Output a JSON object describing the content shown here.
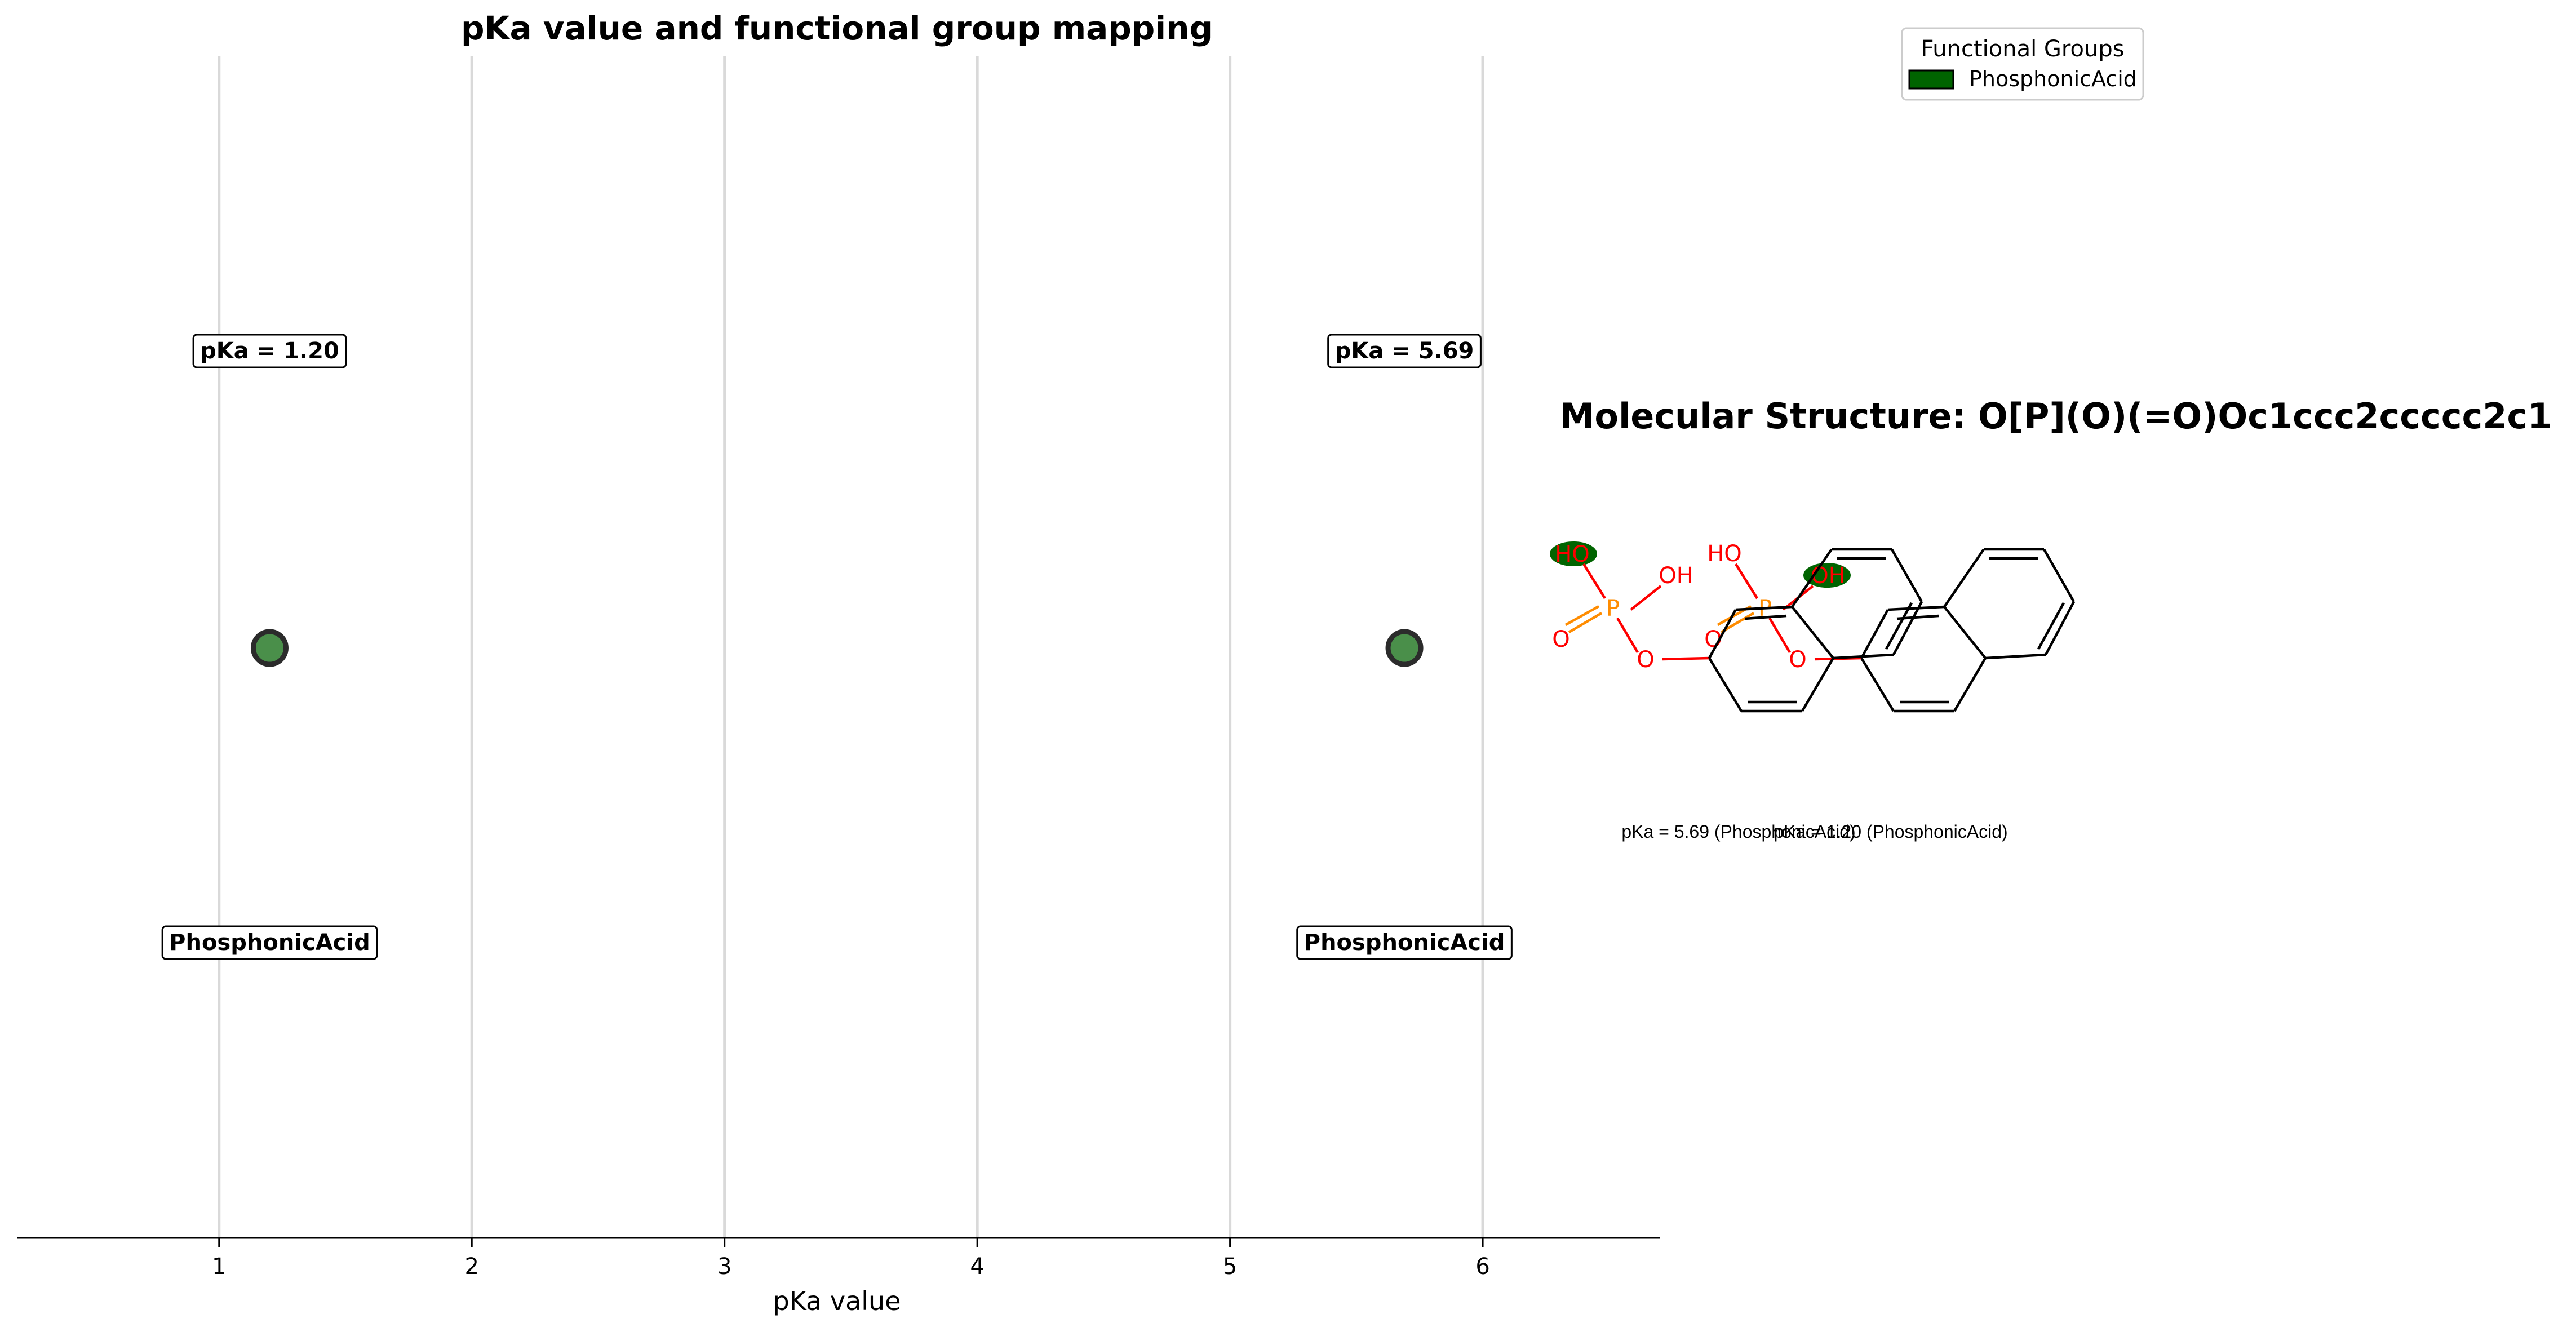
{
  "chart_data": [
    {
      "type": "scatter",
      "title": "pKa value and functional group mapping",
      "xlabel": "pKa value",
      "ylabel": "",
      "xlim": [
        0.2,
        6.7
      ],
      "xticks": [
        "1",
        "2",
        "3",
        "4",
        "5",
        "6"
      ],
      "grid": "vertical",
      "points": [
        {
          "x": 1.2,
          "pka_label": "pKa = 1.20",
          "group_label": "PhosphonicAcid"
        },
        {
          "x": 5.69,
          "pka_label": "pKa = 5.69",
          "group_label": "PhosphonicAcid"
        }
      ]
    }
  ],
  "legend": {
    "title": "Functional Groups",
    "items": [
      {
        "name": "PhosphonicAcid",
        "color": "#006400"
      }
    ]
  },
  "structure": {
    "title": "Molecular Structure: O[P](O)(=O)Oc1ccc2ccccc2c1",
    "panels": [
      {
        "caption": "pKa = 1.20 (PhosphonicAcid)",
        "atoms": {
          "ho": "HO",
          "oh": "OH",
          "o_double": "O",
          "o_ring": "O",
          "p": "P"
        }
      },
      {
        "caption": "pKa = 5.69 (PhosphonicAcid)",
        "atoms": {
          "ho": "HO",
          "oh": "OH",
          "o_double": "O",
          "o_ring": "O",
          "p": "P"
        }
      }
    ]
  },
  "colors": {
    "point_fill": "#4a8f4a",
    "point_edge": "#2b2b2b",
    "highlight": "#006400",
    "grid": "#d9d9d9",
    "oxygen": "#ff0000",
    "phosphorus": "#ff8c00"
  }
}
